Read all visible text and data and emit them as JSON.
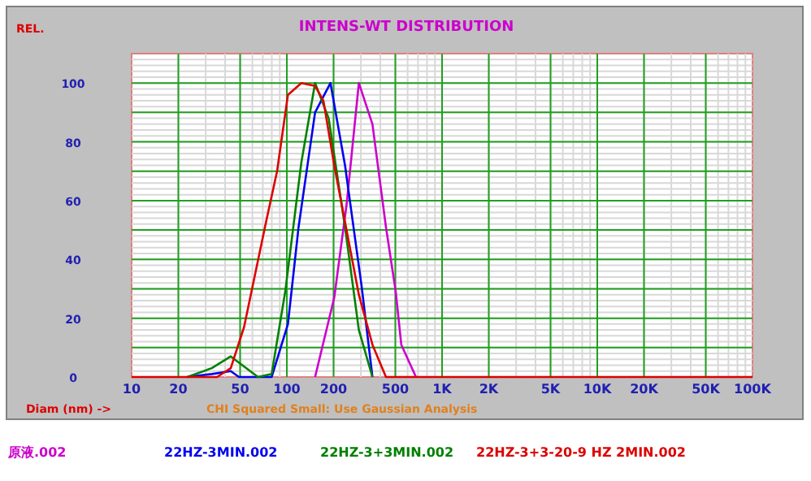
{
  "chart_data": {
    "type": "line",
    "title": "INTENS-WT DISTRIBUTION",
    "ylabel": "REL.",
    "xlabel": "Diam (nm) ->",
    "annotations": [
      "CHI Squared Small: Use Gaussian Analysis"
    ],
    "log": "x",
    "grid": true,
    "legend": "bottom",
    "xlim": [
      10,
      100000
    ],
    "ylim": [
      0,
      110
    ],
    "xticks": [
      10,
      20,
      50,
      100,
      200,
      500,
      {
        "value": 1000,
        "label": "1K"
      },
      {
        "value": 2000,
        "label": "2K"
      },
      {
        "value": 5000,
        "label": "5K"
      },
      {
        "value": 10000,
        "label": "10K"
      },
      {
        "value": 20000,
        "label": "20K"
      },
      {
        "value": 50000,
        "label": "50K"
      },
      {
        "value": 100000,
        "label": "100K"
      }
    ],
    "yticks": [
      0,
      20,
      40,
      60,
      80,
      100
    ],
    "series": [
      {
        "name": "原液.002",
        "color": "#cc00cc",
        "x": [
          152,
          202,
          243,
          291,
          356,
          435,
          503,
          546,
          679
        ],
        "values": [
          0,
          27,
          59,
          100,
          86,
          51,
          29,
          11,
          0
        ]
      },
      {
        "name": "22HZ-3MIN.002",
        "color": "#0000ee",
        "x": [
          22.8,
          32.8,
          43.5,
          49.1,
          79.8,
          101.6,
          119,
          152,
          191,
          237,
          303,
          356
        ],
        "values": [
          0,
          1,
          2,
          0,
          0,
          18,
          51,
          90,
          100,
          72,
          31,
          0
        ]
      },
      {
        "name": "22HZ-3+3MIN.002",
        "color": "#008000",
        "x": [
          22.8,
          32.8,
          43.5,
          65.2,
          79.8,
          97.6,
          124,
          152,
          186,
          237,
          291,
          356
        ],
        "values": [
          0,
          3,
          7,
          0,
          1,
          29,
          73,
          100,
          88,
          51,
          16,
          0
        ]
      },
      {
        "name": "22HZ-3+3-20-9 HZ 2MIN.002",
        "color": "#dd0000",
        "x": [
          10,
          35.5,
          43.5,
          53,
          73.6,
          86.5,
          101.6,
          124,
          152,
          172,
          202,
          291,
          356,
          435,
          100000
        ],
        "values": [
          0,
          0,
          3,
          17,
          53,
          70,
          96,
          100,
          99,
          94,
          72,
          28,
          11,
          0,
          0
        ]
      }
    ]
  }
}
